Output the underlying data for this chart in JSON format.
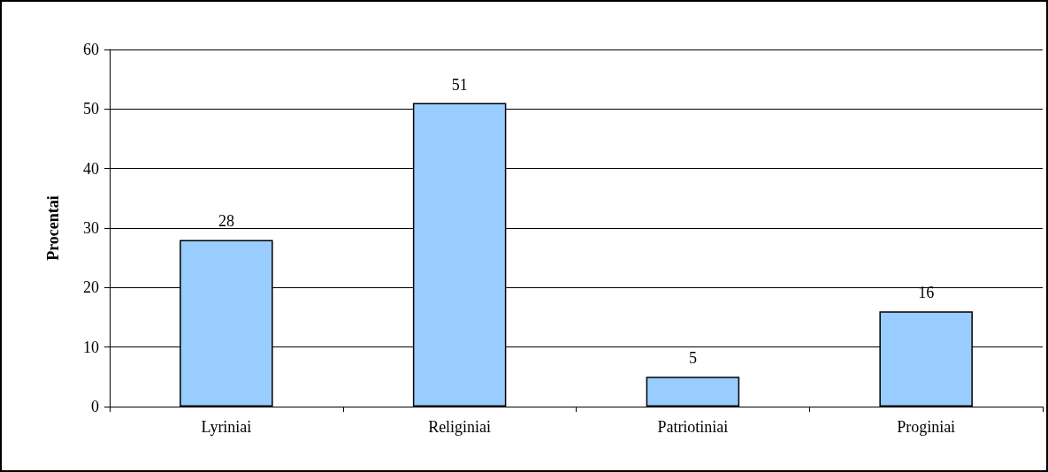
{
  "chart_data": {
    "type": "bar",
    "ylabel": "Procentai",
    "categories": [
      "Lyriniai",
      "Religiniai",
      "Patriotiniai",
      "Proginiai"
    ],
    "values": [
      28,
      51,
      5,
      16
    ],
    "color": "#99ccff",
    "ylim": [
      0,
      60
    ],
    "yticks": [
      0,
      10,
      20,
      30,
      40,
      50,
      60
    ],
    "grid": "y",
    "data_labels": true
  }
}
